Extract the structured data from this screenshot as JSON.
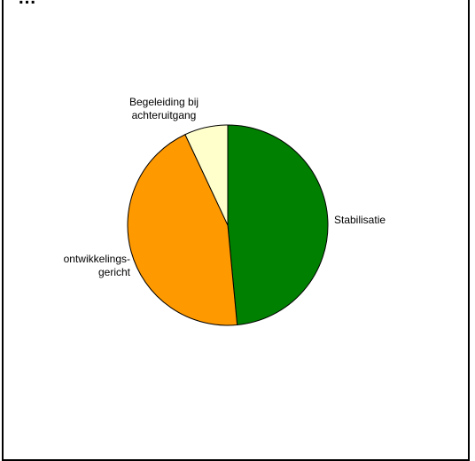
{
  "chart_data": {
    "type": "pie",
    "title": "…",
    "slices": [
      {
        "label": "Stabilisatie",
        "value": 48.5,
        "color": "#008000"
      },
      {
        "label": "ontwikkelings-gericht",
        "value": 44.5,
        "color": "#ff9900"
      },
      {
        "label": "Begeleiding bij achteruitgang",
        "value": 7.0,
        "color": "#ffffcc"
      }
    ],
    "legend": "none"
  }
}
